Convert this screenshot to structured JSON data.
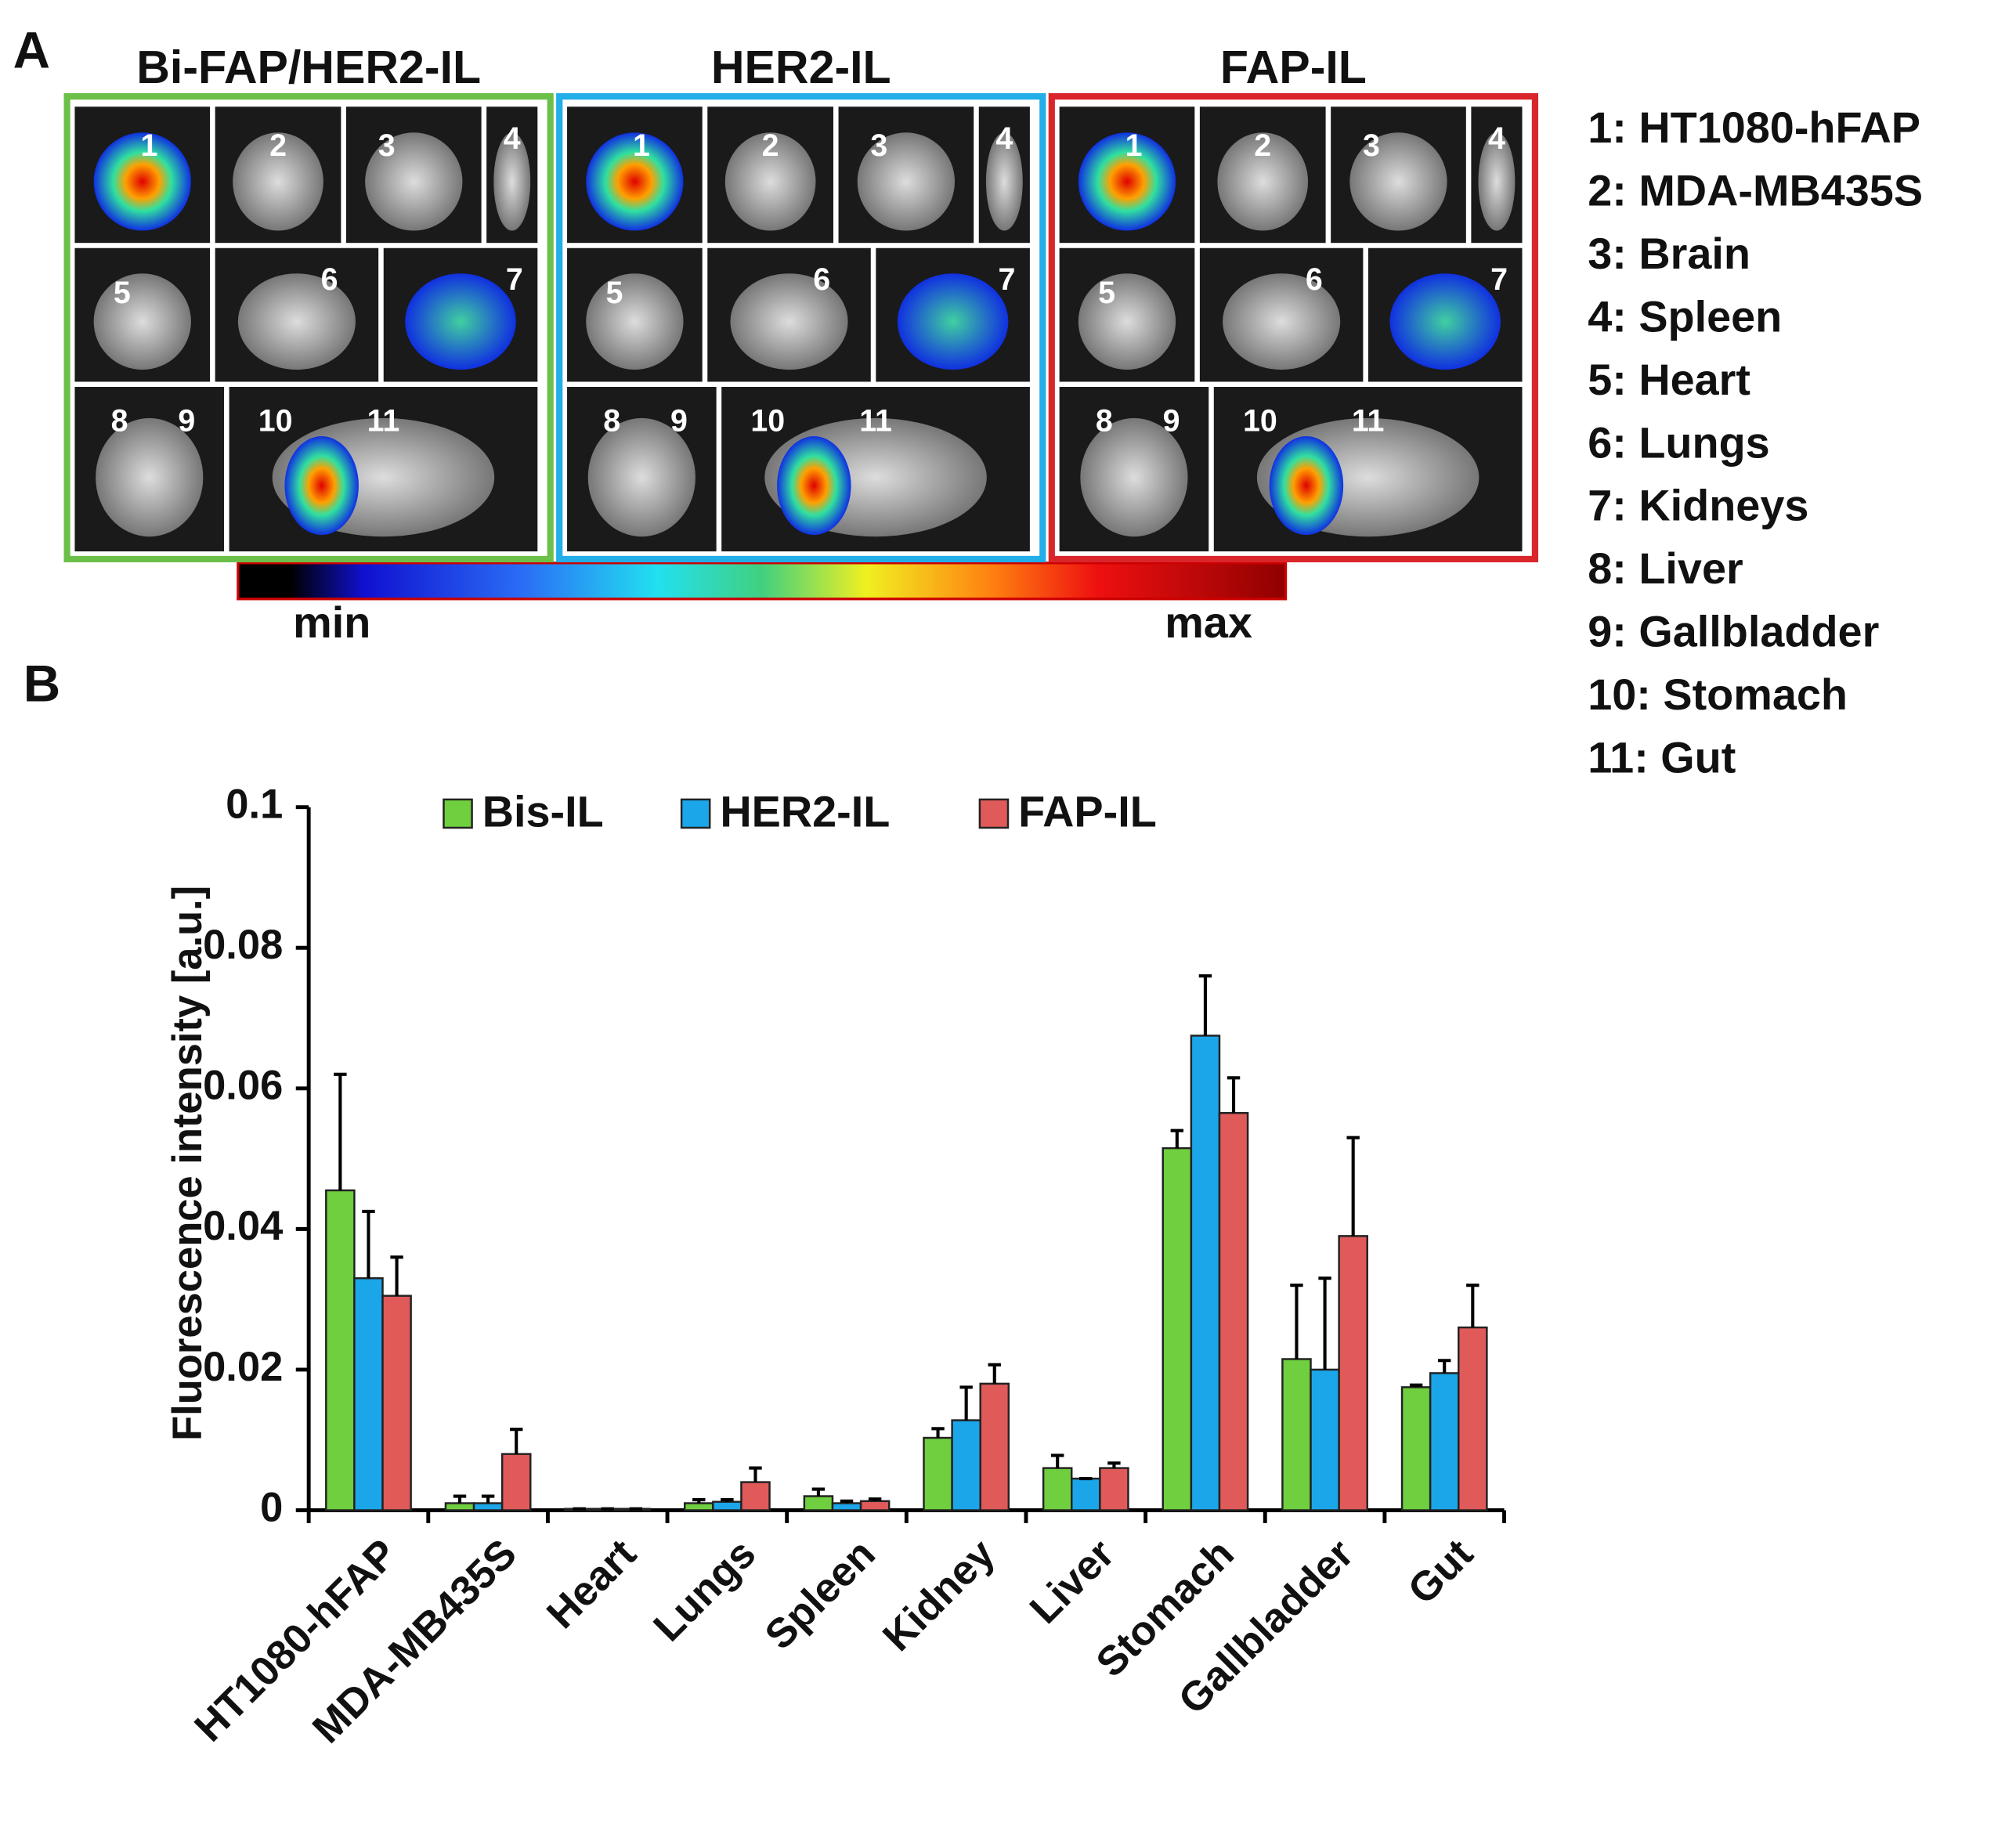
{
  "panel_a": {
    "label": "A",
    "groups": [
      {
        "title": "Bi-FAP/HER2-IL",
        "color": "#6cc04a",
        "organ_labels": [
          "1",
          "2",
          "3",
          "4",
          "5",
          "6",
          "7",
          "8",
          "9",
          "10",
          "11"
        ]
      },
      {
        "title": "HER2-IL",
        "color": "#22aee8",
        "organ_labels": [
          "1",
          "2",
          "3",
          "4",
          "5",
          "6",
          "7",
          "8",
          "9",
          "10",
          "11"
        ]
      },
      {
        "title": "FAP-IL",
        "color": "#d9262b",
        "organ_labels": [
          "1",
          "2",
          "3",
          "4",
          "5",
          "6",
          "7",
          "8",
          "9",
          "10",
          "11"
        ]
      }
    ],
    "colorbar": {
      "min": "min",
      "max": "max"
    },
    "key": [
      "1: HT1080-hFAP",
      "2: MDA-MB435S",
      "3: Brain",
      "4: Spleen",
      "5: Heart",
      "6: Lungs",
      "7: Kidneys",
      "8: Liver",
      "9: Gallbladder",
      "10: Stomach",
      "11: Gut"
    ]
  },
  "chart_data": {
    "label": "B",
    "type": "bar",
    "ylabel": "Fluorescence intensity [a.u.]",
    "categories": [
      "HT1080-hFAP",
      "MDA-MB435S",
      "Heart",
      "Lungs",
      "Spleen",
      "Kidney",
      "Liver",
      "Stomach",
      "Gallbladder",
      "Gut"
    ],
    "series": [
      {
        "name": "Bis-IL",
        "color": "#6fcf3f",
        "values": [
          0.0455,
          0.001,
          0.0002,
          0.001,
          0.002,
          0.0103,
          0.006,
          0.0515,
          0.0215,
          0.0175
        ],
        "errors": [
          0.0165,
          0.001,
          0,
          0.0005,
          0.001,
          0.0013,
          0.0018,
          0.0025,
          0.0105,
          0.0003
        ]
      },
      {
        "name": "HER2-IL",
        "color": "#1ba6ea",
        "values": [
          0.033,
          0.001,
          0.0002,
          0.0012,
          0.001,
          0.0128,
          0.0045,
          0.0675,
          0.02,
          0.0195
        ],
        "errors": [
          0.0095,
          0.001,
          0,
          0.0003,
          0.0003,
          0.0047,
          0,
          0.0085,
          0.013,
          0.0018
        ]
      },
      {
        "name": "FAP-IL",
        "color": "#e05a5a",
        "values": [
          0.0305,
          0.008,
          0.0002,
          0.004,
          0.0013,
          0.018,
          0.006,
          0.0565,
          0.039,
          0.026
        ],
        "errors": [
          0.0055,
          0.0035,
          0,
          0.002,
          0.0003,
          0.0027,
          0.0007,
          0.005,
          0.014,
          0.006
        ]
      }
    ],
    "ylim": [
      0,
      0.1
    ],
    "yticks": [
      0,
      0.02,
      0.04,
      0.06,
      0.08,
      0.1
    ],
    "legend": "top"
  }
}
